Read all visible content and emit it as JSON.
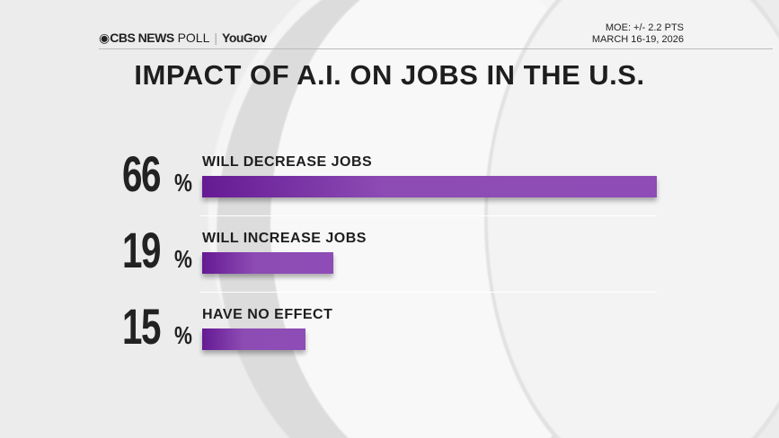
{
  "header": {
    "brand": "CBS NEWS",
    "brand_suffix": "POLL",
    "partner": "YouGov",
    "moe": "MOE: +/- 2.2 PTS",
    "dates": "MARCH 16-19, 2026"
  },
  "chart_data": {
    "type": "bar",
    "orientation": "horizontal",
    "title": "IMPACT OF A.I. ON JOBS IN THE U.S.",
    "categories": [
      "WILL DECREASE JOBS",
      "WILL INCREASE JOBS",
      "HAVE NO EFFECT"
    ],
    "values": [
      66,
      19,
      15
    ],
    "value_labels": [
      "66",
      "19",
      "15"
    ],
    "unit": "%",
    "xlim": [
      0,
      100
    ],
    "bar_color": "#7b2fa8"
  }
}
